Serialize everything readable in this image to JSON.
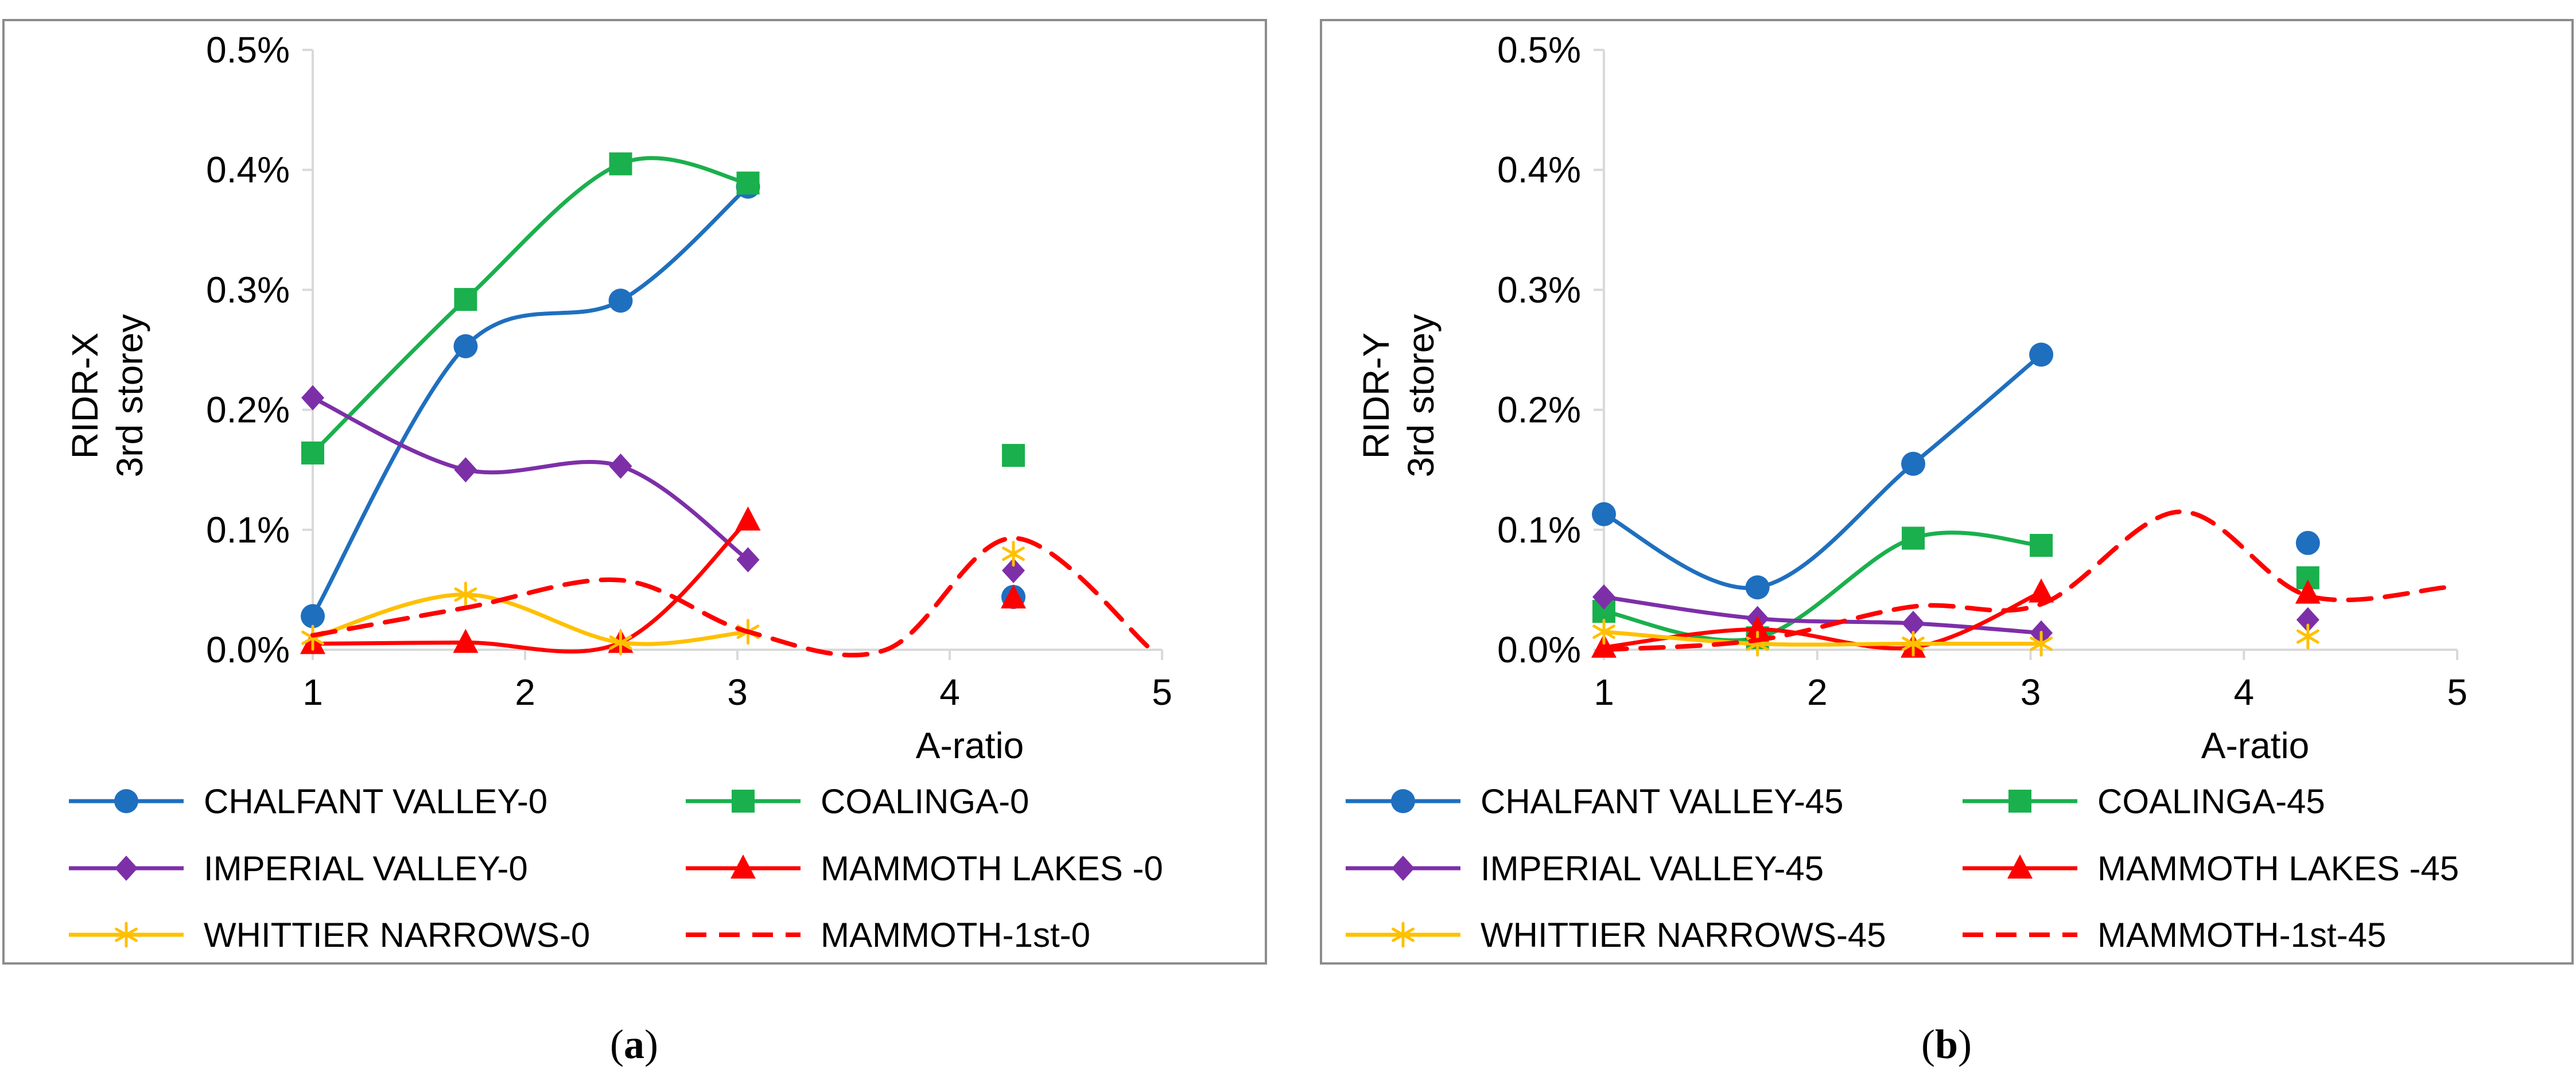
{
  "chart_data": [
    {
      "type": "line",
      "caption": "a",
      "xlabel": "A-ratio",
      "ylabel": [
        "RIDR-X",
        "3rd storey"
      ],
      "xlim": [
        1,
        5
      ],
      "ylim": [
        0,
        0.5
      ],
      "x_ticks": [
        "1",
        "2",
        "3",
        "4",
        "5"
      ],
      "y_ticks": [
        "0.0%",
        "0.1%",
        "0.2%",
        "0.3%",
        "0.4%",
        "0.5%"
      ],
      "legend_position": "bottom",
      "series": [
        {
          "name": "CHALFANT VALLEY-0",
          "color": "#1f6fbf",
          "marker": "circle",
          "dash": false,
          "points": [
            [
              1,
              0.028
            ],
            [
              1.72,
              0.253
            ],
            [
              2.45,
              0.291
            ],
            [
              3.05,
              0.386
            ]
          ],
          "extra_points": [
            [
              4.3,
              0.044
            ]
          ]
        },
        {
          "name": "COALINGA-0",
          "color": "#1ab04d",
          "marker": "square",
          "dash": false,
          "points": [
            [
              1,
              0.164
            ],
            [
              1.72,
              0.292
            ],
            [
              2.45,
              0.405
            ],
            [
              3.05,
              0.389
            ]
          ],
          "extra_points": [
            [
              4.3,
              0.162
            ]
          ]
        },
        {
          "name": "IMPERIAL VALLEY-0",
          "color": "#7d2fa8",
          "marker": "diamond",
          "dash": false,
          "points": [
            [
              1,
              0.21
            ],
            [
              1.72,
              0.15
            ],
            [
              2.45,
              0.153
            ],
            [
              3.05,
              0.075
            ]
          ],
          "extra_points": [
            [
              4.3,
              0.066
            ]
          ]
        },
        {
          "name": "MAMMOTH LAKES -0",
          "color": "#ff0000",
          "marker": "triangle",
          "dash": false,
          "points": [
            [
              1,
              0.005
            ],
            [
              1.72,
              0.006
            ],
            [
              2.45,
              0.006
            ],
            [
              3.05,
              0.108
            ]
          ],
          "extra_points": [
            [
              4.3,
              0.043
            ]
          ]
        },
        {
          "name": "WHITTIER NARROWS-0",
          "color": "#ffc000",
          "marker": "asterisk",
          "dash": false,
          "points": [
            [
              1,
              0.01
            ],
            [
              1.72,
              0.046
            ],
            [
              2.45,
              0.006
            ],
            [
              3.05,
              0.015
            ]
          ],
          "extra_points": [
            [
              4.3,
              0.08
            ]
          ]
        },
        {
          "name": "MAMMOTH-1st-0",
          "color": "#ff0000",
          "marker": "none",
          "dash": true,
          "points": [
            [
              1,
              0.012
            ],
            [
              1.72,
              0.035
            ],
            [
              2.45,
              0.058
            ],
            [
              3.05,
              0.015
            ],
            [
              3.7,
              0.0
            ],
            [
              4.3,
              0.093
            ],
            [
              4.95,
              0.0
            ]
          ],
          "extra_points": []
        }
      ]
    },
    {
      "type": "line",
      "caption": "b",
      "xlabel": "A-ratio",
      "ylabel": [
        "RIDR-Y",
        "3rd storey"
      ],
      "xlim": [
        1,
        5
      ],
      "ylim": [
        0,
        0.5
      ],
      "x_ticks": [
        "1",
        "2",
        "3",
        "4",
        "5"
      ],
      "y_ticks": [
        "0.0%",
        "0.1%",
        "0.2%",
        "0.3%",
        "0.4%",
        "0.5%"
      ],
      "legend_position": "bottom",
      "series": [
        {
          "name": "CHALFANT VALLEY-45",
          "color": "#1f6fbf",
          "marker": "circle",
          "dash": false,
          "points": [
            [
              1,
              0.113
            ],
            [
              1.72,
              0.052
            ],
            [
              2.45,
              0.155
            ],
            [
              3.05,
              0.246
            ]
          ],
          "extra_points": [
            [
              4.3,
              0.089
            ]
          ]
        },
        {
          "name": "COALINGA-45",
          "color": "#1ab04d",
          "marker": "square",
          "dash": false,
          "points": [
            [
              1,
              0.032
            ],
            [
              1.72,
              0.01
            ],
            [
              2.45,
              0.093
            ],
            [
              3.05,
              0.087
            ]
          ],
          "extra_points": [
            [
              4.3,
              0.06
            ]
          ]
        },
        {
          "name": "IMPERIAL VALLEY-45",
          "color": "#7d2fa8",
          "marker": "diamond",
          "dash": false,
          "points": [
            [
              1,
              0.044
            ],
            [
              1.72,
              0.026
            ],
            [
              2.45,
              0.022
            ],
            [
              3.05,
              0.014
            ]
          ],
          "extra_points": [
            [
              4.3,
              0.025
            ]
          ]
        },
        {
          "name": "MAMMOTH LAKES -45",
          "color": "#ff0000",
          "marker": "triangle",
          "dash": false,
          "points": [
            [
              1,
              0.002
            ],
            [
              1.72,
              0.017
            ],
            [
              2.45,
              0.002
            ],
            [
              3.05,
              0.048
            ]
          ],
          "extra_points": [
            [
              4.3,
              0.047
            ]
          ]
        },
        {
          "name": "WHITTIER NARROWS-45",
          "color": "#ffc000",
          "marker": "asterisk",
          "dash": false,
          "points": [
            [
              1,
              0.015
            ],
            [
              1.72,
              0.005
            ],
            [
              2.45,
              0.005
            ],
            [
              3.05,
              0.005
            ]
          ],
          "extra_points": [
            [
              4.3,
              0.011
            ]
          ]
        },
        {
          "name": "MAMMOTH-1st-45",
          "color": "#ff0000",
          "marker": "none",
          "dash": true,
          "points": [
            [
              1,
              0.0
            ],
            [
              1.72,
              0.008
            ],
            [
              2.45,
              0.036
            ],
            [
              3.05,
              0.038
            ],
            [
              3.7,
              0.115
            ],
            [
              4.3,
              0.045
            ],
            [
              4.95,
              0.052
            ]
          ],
          "extra_points": []
        }
      ]
    }
  ]
}
